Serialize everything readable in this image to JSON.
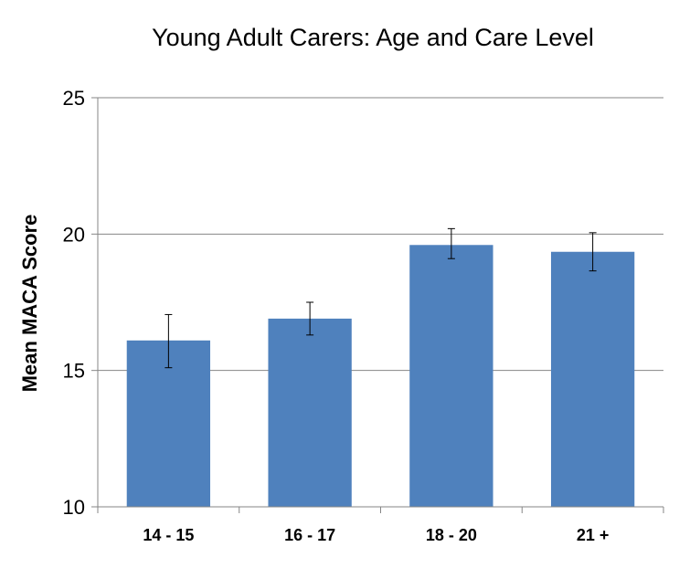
{
  "chart_data": {
    "type": "bar",
    "title": "Young Adult Carers: Age and Care Level",
    "xlabel": "",
    "ylabel": "Mean MACA Score",
    "categories": [
      "14 - 15",
      "16 - 17",
      "18 - 20",
      "21 +"
    ],
    "values": [
      16.1,
      16.9,
      19.6,
      19.35
    ],
    "error_low": [
      15.1,
      16.3,
      19.1,
      18.65
    ],
    "error_high": [
      17.05,
      17.5,
      20.2,
      20.05
    ],
    "ylim": [
      10,
      25
    ],
    "yticks": [
      "10",
      "15",
      "20",
      "25"
    ],
    "grid": true,
    "bar_color": "#4F81BD",
    "grid_color": "#868686"
  }
}
